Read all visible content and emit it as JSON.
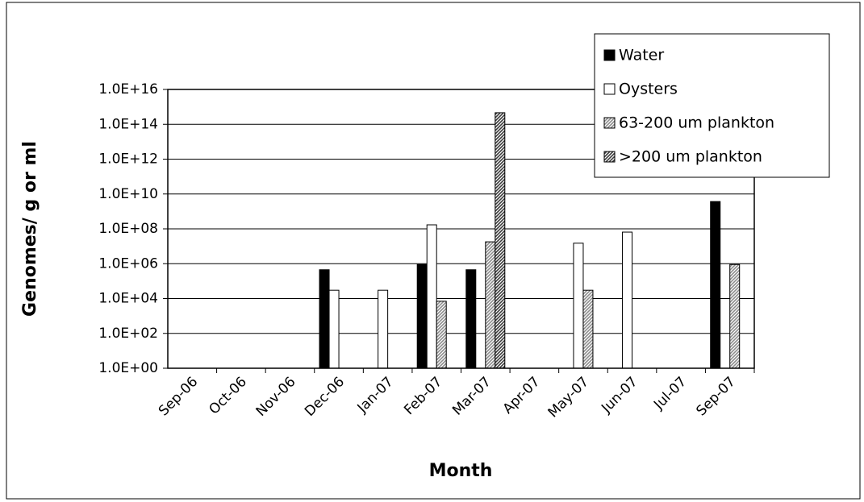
{
  "chart_data": {
    "type": "bar",
    "x_label": "Month",
    "y_label": "Genomes/ g or ml",
    "categories": [
      "Sep-06",
      "Oct-06",
      "Nov-06",
      "Dec-06",
      "Jan-07",
      "Feb-07",
      "Mar-07",
      "Apr-07",
      "May-07",
      "Jun-07",
      "Jul-07",
      "Sep-07"
    ],
    "series": [
      {
        "name": "Water",
        "color": "#000000",
        "hatch": false,
        "values": [
          null,
          null,
          null,
          450000,
          null,
          900000,
          450000,
          null,
          null,
          null,
          null,
          3700000000
        ]
      },
      {
        "name": "Oysters",
        "color": "#ffffff",
        "hatch": false,
        "values": [
          null,
          null,
          null,
          30000,
          30000,
          170000000,
          null,
          null,
          15000000,
          65000000,
          null,
          null
        ]
      },
      {
        "name": "63-200 um plankton",
        "color": "#8c8c8c",
        "hatch": true,
        "values": [
          null,
          null,
          null,
          null,
          null,
          7000,
          18000000,
          null,
          30000,
          null,
          null,
          900000
        ]
      },
      {
        "name": ">200 um plankton",
        "color": "#3c3c3c",
        "hatch": true,
        "values": [
          null,
          null,
          null,
          null,
          null,
          null,
          460000000000000,
          null,
          null,
          null,
          null,
          null
        ]
      }
    ],
    "log_scale": true,
    "ylim": [
      1,
      1e+16
    ],
    "yticks": [
      {
        "value": 1,
        "label": "1.0E+00"
      },
      {
        "value": 100,
        "label": "1.0E+02"
      },
      {
        "value": 10000,
        "label": "1.0E+04"
      },
      {
        "value": 1000000,
        "label": "1.0E+06"
      },
      {
        "value": 100000000,
        "label": "1.0E+08"
      },
      {
        "value": 10000000000,
        "label": "1.0E+10"
      },
      {
        "value": 1000000000000,
        "label": "1.0E+12"
      },
      {
        "value": 100000000000000,
        "label": "1.0E+14"
      },
      {
        "value": 1e+16,
        "label": "1.0E+16"
      }
    ],
    "grid": true,
    "legend_position": "upper-right"
  }
}
